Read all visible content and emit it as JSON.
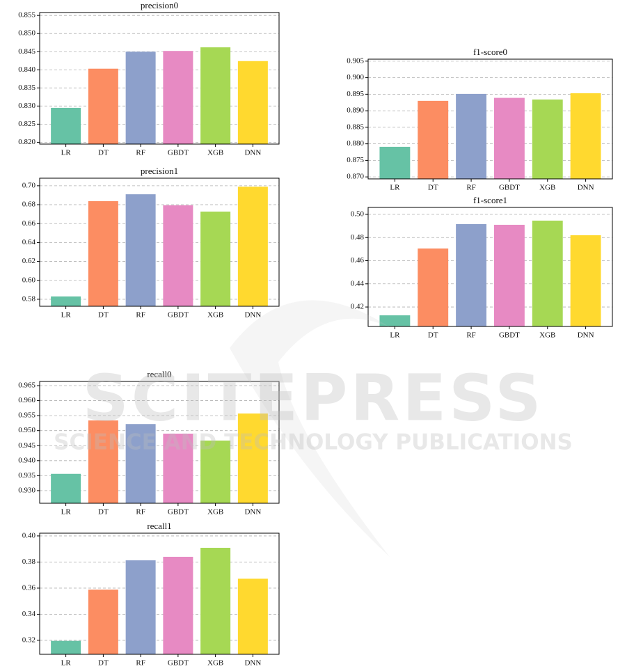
{
  "chart_data": [
    {
      "type": "bar",
      "title": "precision0",
      "categories": [
        "LR",
        "DT",
        "RF",
        "GBDT",
        "XGB",
        "DNN"
      ],
      "values": [
        0.8295,
        0.8403,
        0.845,
        0.8452,
        0.8462,
        0.8424
      ],
      "colors": [
        "#66c2a5",
        "#fc8d62",
        "#8da0cb",
        "#e78ac3",
        "#a6d854",
        "#ffd92f"
      ],
      "ylim": [
        0.8195,
        0.8558
      ],
      "yticks": [
        {
          "value": 0.82,
          "label": "0.820"
        },
        0.825,
        {
          "value": 0.83,
          "label": "0.830"
        },
        0.835,
        {
          "value": 0.84,
          "label": "0.840"
        },
        0.845,
        {
          "value": 0.85,
          "label": "0.850"
        },
        0.855
      ],
      "grid": true
    },
    {
      "type": "bar",
      "title": "precision1",
      "categories": [
        "LR",
        "DT",
        "RF",
        "GBDT",
        "XGB",
        "DNN"
      ],
      "values": [
        0.583,
        0.6837,
        0.691,
        0.6793,
        0.6727,
        0.699
      ],
      "colors": [
        "#66c2a5",
        "#fc8d62",
        "#8da0cb",
        "#e78ac3",
        "#a6d854",
        "#ffd92f"
      ],
      "ylim": [
        0.5726,
        0.708
      ],
      "yticks": [
        0.58,
        {
          "value": 0.6,
          "label": "0.60"
        },
        0.62,
        0.64,
        0.66,
        0.68,
        {
          "value": 0.7,
          "label": "0.70"
        }
      ],
      "grid": true
    },
    {
      "type": "bar",
      "title": "f1-score0",
      "categories": [
        "LR",
        "DT",
        "RF",
        "GBDT",
        "XGB",
        "DNN"
      ],
      "values": [
        0.8791,
        0.893,
        0.8951,
        0.8939,
        0.8934,
        0.8953
      ],
      "colors": [
        "#66c2a5",
        "#fc8d62",
        "#8da0cb",
        "#e78ac3",
        "#a6d854",
        "#ffd92f"
      ],
      "ylim": [
        0.8694,
        0.9056
      ],
      "yticks": [
        {
          "value": 0.87,
          "label": "0.870"
        },
        0.875,
        {
          "value": 0.88,
          "label": "0.880"
        },
        0.885,
        {
          "value": 0.89,
          "label": "0.890"
        },
        0.895,
        {
          "value": 0.9,
          "label": "0.900"
        },
        0.905
      ],
      "grid": true
    },
    {
      "type": "bar",
      "title": "f1-score1",
      "categories": [
        "LR",
        "DT",
        "RF",
        "GBDT",
        "XGB",
        "DNN"
      ],
      "values": [
        0.4128,
        0.4705,
        0.4916,
        0.491,
        0.4946,
        0.482
      ],
      "colors": [
        "#66c2a5",
        "#fc8d62",
        "#8da0cb",
        "#e78ac3",
        "#a6d854",
        "#ffd92f"
      ],
      "ylim": [
        0.4032,
        0.506
      ],
      "yticks": [
        0.42,
        0.44,
        0.46,
        0.48,
        {
          "value": 0.5,
          "label": "0.50"
        }
      ],
      "grid": true
    },
    {
      "type": "bar",
      "title": "recall0",
      "categories": [
        "LR",
        "DT",
        "RF",
        "GBDT",
        "XGB",
        "DNN"
      ],
      "values": [
        0.9356,
        0.9534,
        0.9522,
        0.949,
        0.9467,
        0.9557
      ],
      "colors": [
        "#66c2a5",
        "#fc8d62",
        "#8da0cb",
        "#e78ac3",
        "#a6d854",
        "#ffd92f"
      ],
      "ylim": [
        0.9258,
        0.9664
      ],
      "yticks": [
        {
          "value": 0.93,
          "label": "0.930"
        },
        0.935,
        {
          "value": 0.94,
          "label": "0.940"
        },
        0.945,
        {
          "value": 0.95,
          "label": "0.950"
        },
        0.955,
        {
          "value": 0.96,
          "label": "0.960"
        },
        0.965
      ],
      "grid": true
    },
    {
      "type": "bar",
      "title": "recall1",
      "categories": [
        "LR",
        "DT",
        "RF",
        "GBDT",
        "XGB",
        "DNN"
      ],
      "values": [
        0.3196,
        0.3589,
        0.3813,
        0.384,
        0.3909,
        0.3672
      ],
      "colors": [
        "#66c2a5",
        "#fc8d62",
        "#8da0cb",
        "#e78ac3",
        "#a6d854",
        "#ffd92f"
      ],
      "ylim": [
        0.3093,
        0.4021
      ],
      "yticks": [
        0.32,
        0.34,
        0.36,
        0.38,
        {
          "value": 0.4,
          "label": "0.40"
        }
      ],
      "grid": true
    }
  ],
  "watermark": {
    "title": "SCITEPRESS",
    "subtitle": "SCIENCE AND TECHNOLOGY PUBLICATIONS"
  }
}
